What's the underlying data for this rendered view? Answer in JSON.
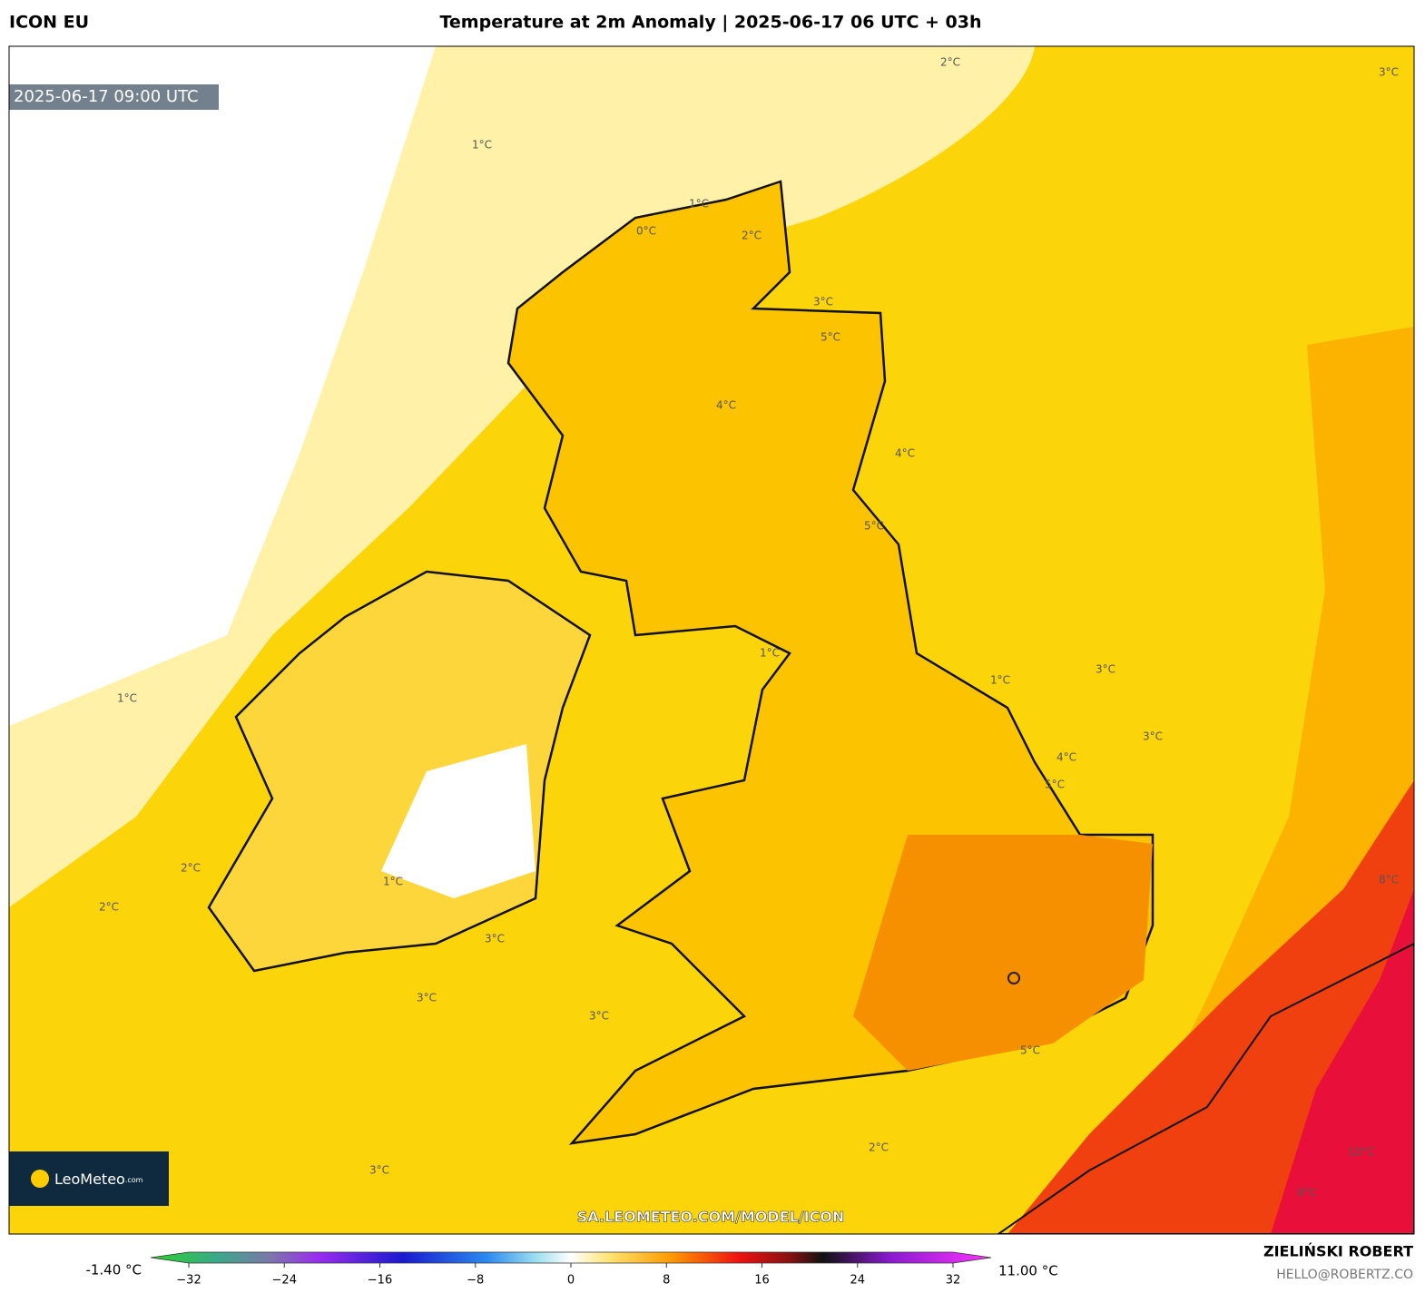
{
  "header": {
    "model": "ICON EU",
    "title": "Temperature at 2m Anomaly | 2025-06-17 06 UTC + 03h"
  },
  "map": {
    "timestamp": "2025-06-17 09:00 UTC",
    "watermark": "SA.LEOMETEO.COM/MODEL/ICON",
    "logo": "LeoMeteo",
    "logo_suffix": ".com",
    "contour_labels": [
      "2°C",
      "3°C",
      "1°C",
      "1°C",
      "0°C",
      "2°C",
      "3°C",
      "5°C",
      "4°C",
      "4°C",
      "5°C",
      "1°C",
      "1°C",
      "3°C",
      "4°C",
      "5°C",
      "3°C",
      "2°C",
      "1°C",
      "2°C",
      "3°C",
      "3°C",
      "3°C",
      "5°C",
      "9°C",
      "10°C",
      "8°C",
      "2°C",
      "3°C",
      "1°C"
    ]
  },
  "colorbar": {
    "min_label": "-1.40 °C",
    "max_label": "11.00 °C",
    "range": [
      -32,
      32
    ],
    "ticks": [
      {
        "value": -32,
        "label": "−32"
      },
      {
        "value": -24,
        "label": "−24"
      },
      {
        "value": -16,
        "label": "−16"
      },
      {
        "value": -8,
        "label": "−8"
      },
      0,
      8,
      16,
      24,
      32
    ]
  },
  "footer": {
    "author": "ZIELIŃSKI ROBERT",
    "email": "HELLO@ROBERTZ.CO"
  }
}
